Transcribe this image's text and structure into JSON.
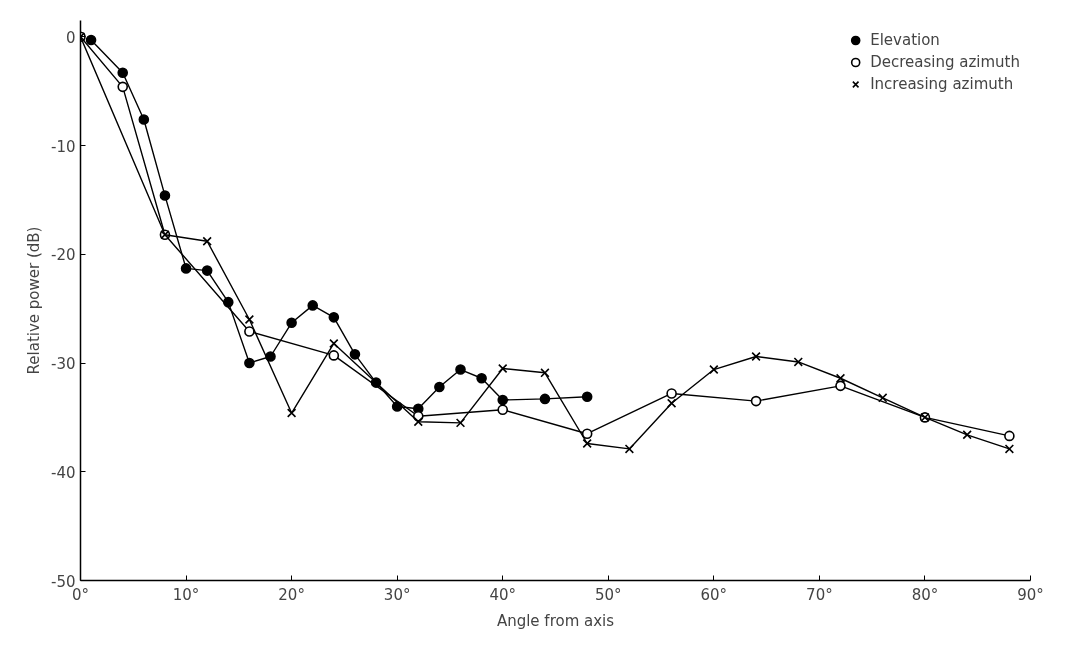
{
  "chart_data": {
    "type": "line",
    "xlabel": "Angle from axis",
    "ylabel": "Relative power (dB)",
    "xlim": [
      0,
      90
    ],
    "ylim": [
      -50,
      1.5
    ],
    "xticks": [
      {
        "value": 0,
        "label": "0°"
      },
      {
        "value": 10,
        "label": "10°"
      },
      {
        "value": 20,
        "label": "20°"
      },
      {
        "value": 30,
        "label": "30°"
      },
      {
        "value": 40,
        "label": "40°"
      },
      {
        "value": 50,
        "label": "50°"
      },
      {
        "value": 60,
        "label": "60°"
      },
      {
        "value": 70,
        "label": "70°"
      },
      {
        "value": 80,
        "label": "80°"
      },
      {
        "value": 90,
        "label": "90°"
      }
    ],
    "yticks": [
      0,
      -10,
      -20,
      -30,
      -40,
      -50
    ],
    "grid": false,
    "legend": "top right",
    "line_style": "solid",
    "series": [
      {
        "name": "Elevation",
        "color": "#000000",
        "marker": "circle",
        "x": [
          1,
          4,
          6,
          8,
          10,
          12,
          14,
          16,
          18,
          20,
          22,
          24,
          26,
          28,
          30,
          32,
          34,
          36,
          38,
          40,
          44,
          48
        ],
        "values": [
          -0.3,
          -3.3,
          -7.6,
          -14.6,
          -21.3,
          -21.5,
          -24.4,
          -30.0,
          -29.4,
          -26.3,
          -24.7,
          -25.8,
          -29.2,
          -31.8,
          -34.0,
          -34.2,
          -32.2,
          -30.6,
          -31.4,
          -33.4,
          -33.3,
          -33.1
        ]
      },
      {
        "name": "Decreasing azimuth",
        "color": "#000000",
        "marker": "circle_open",
        "x": [
          0,
          4,
          8,
          16,
          24,
          32,
          40,
          48,
          56,
          64,
          72,
          80,
          88
        ],
        "values": [
          0,
          -4.6,
          -18.2,
          -27.1,
          -29.3,
          -34.9,
          -34.3,
          -36.5,
          -32.8,
          -33.5,
          -32.1,
          -35.0,
          -36.7
        ]
      },
      {
        "name": "Increasing azimuth",
        "color": "#000000",
        "marker": "cross",
        "x": [
          0,
          8,
          12,
          16,
          20,
          24,
          32,
          36,
          40,
          44,
          48,
          52,
          56,
          60,
          64,
          68,
          72,
          76,
          80,
          84,
          88
        ],
        "values": [
          0,
          -18.2,
          -18.8,
          -26.0,
          -34.6,
          -28.2,
          -35.4,
          -35.5,
          -30.5,
          -30.9,
          -37.4,
          -37.9,
          -33.7,
          -30.6,
          -29.4,
          -29.9,
          -31.4,
          -33.2,
          -35.0,
          -36.6,
          -37.9
        ]
      }
    ]
  }
}
